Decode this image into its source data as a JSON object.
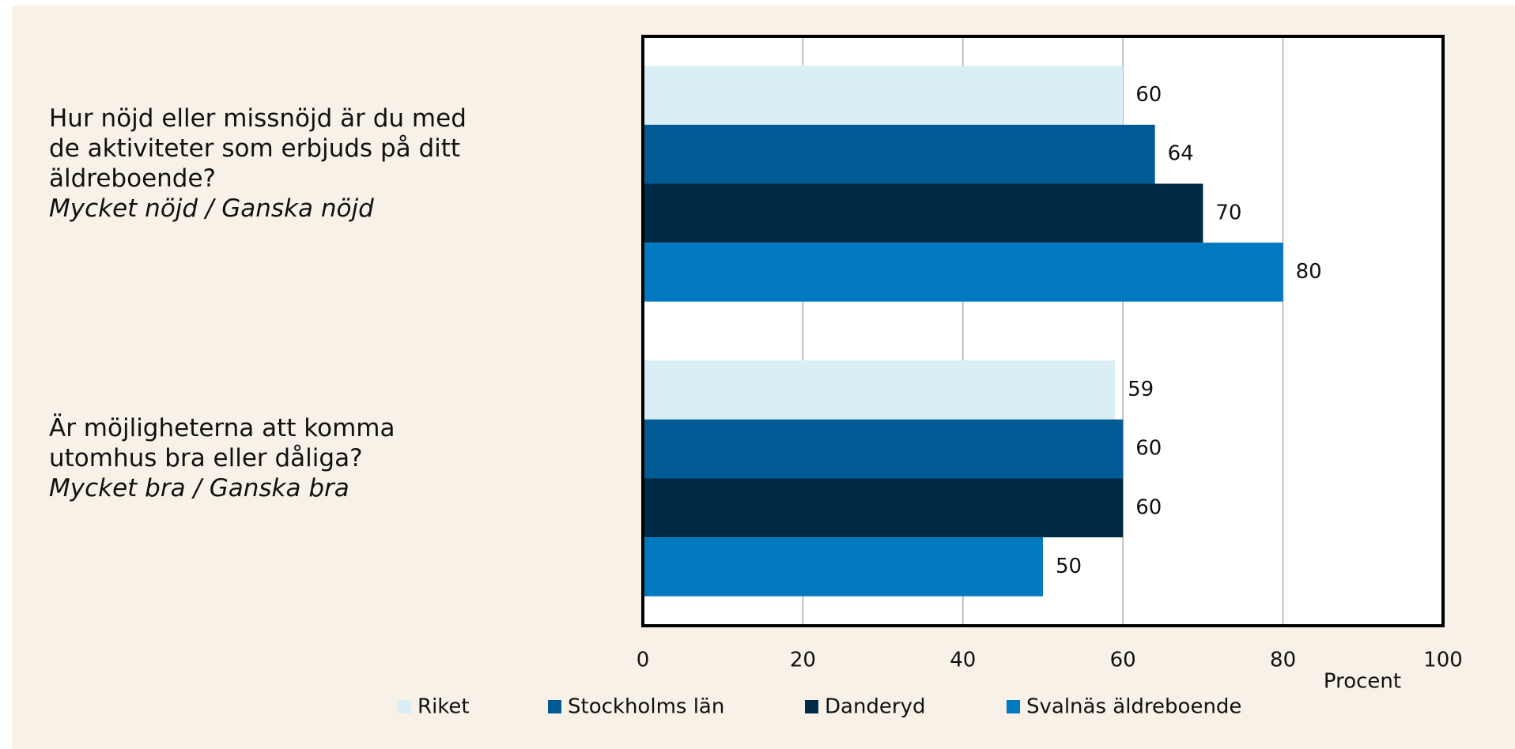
{
  "chart_data": {
    "type": "hbar",
    "categories": [
      {
        "question": "Hur nöjd eller missnöjd är du med de aktiviteter som erbjuds på ditt äldreboende?",
        "note": "Mycket nöjd / Ganska nöjd"
      },
      {
        "question": "Är möjligheterna att komma utomhus bra eller dåliga?",
        "note": "Mycket bra / Ganska bra"
      }
    ],
    "series": [
      {
        "name": "Riket",
        "color": "#daeef6",
        "values": [
          60,
          59
        ]
      },
      {
        "name": "Stockholms län",
        "color": "#005a94",
        "values": [
          64,
          60
        ]
      },
      {
        "name": "Danderyd",
        "color": "#002a45",
        "values": [
          70,
          60
        ]
      },
      {
        "name": "Svalnäs äldreboende",
        "color": "#0079c1",
        "values": [
          80,
          50
        ]
      }
    ],
    "x_label": "Procent",
    "xlim": [
      0,
      100
    ],
    "xticks": [
      0,
      20,
      40,
      60,
      80,
      100
    ],
    "grid": true
  }
}
